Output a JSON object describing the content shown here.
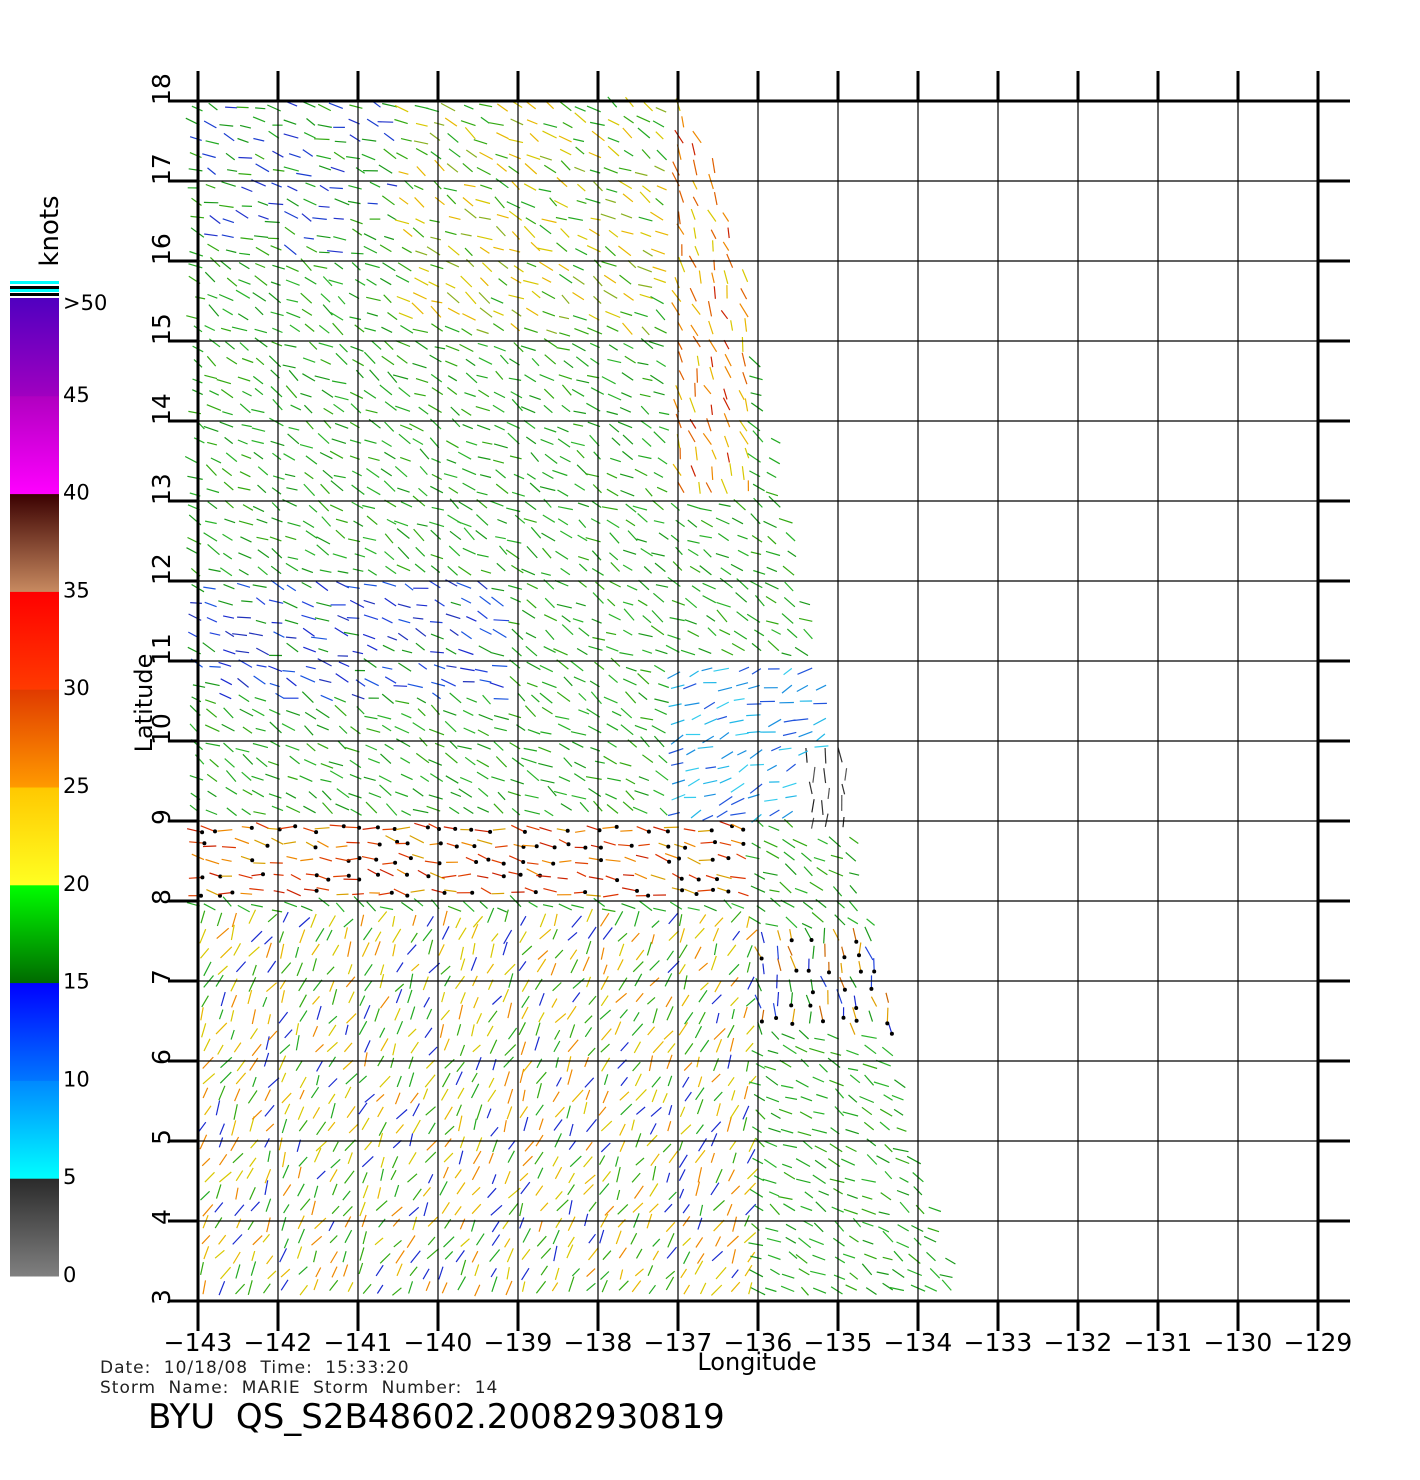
{
  "chart_data": {
    "type": "wind-vector-map",
    "xlabel": "Longitude",
    "ylabel": "Latitude",
    "xlim": [
      -143,
      -129
    ],
    "ylim": [
      3,
      18
    ],
    "x_ticks": [
      -143,
      -142,
      -141,
      -140,
      -139,
      -138,
      -137,
      -136,
      -135,
      -134,
      -133,
      -132,
      -131,
      -130,
      -129
    ],
    "y_ticks": [
      3,
      4,
      5,
      6,
      7,
      8,
      9,
      10,
      11,
      12,
      13,
      14,
      15,
      16,
      17,
      18
    ],
    "grid": true,
    "swath_edge": [
      [
        -136.95,
        18
      ],
      [
        -136.5,
        17
      ],
      [
        -136.2,
        16
      ],
      [
        -136.0,
        15
      ],
      [
        -135.8,
        14
      ],
      [
        -135.6,
        13
      ],
      [
        -135.4,
        12
      ],
      [
        -135.2,
        11
      ],
      [
        -135.0,
        10
      ],
      [
        -134.8,
        9
      ],
      [
        -134.6,
        8
      ],
      [
        -134.4,
        7
      ],
      [
        -134.2,
        6
      ],
      [
        -134.0,
        5
      ],
      [
        -133.7,
        4
      ],
      [
        -133.4,
        3
      ]
    ],
    "colorbar": {
      "title": "knots",
      "labels": [
        ">50",
        "45",
        "40",
        "35",
        "30",
        "25",
        "20",
        "15",
        "10",
        "5",
        "0"
      ],
      "bands": [
        {
          "min": 0,
          "max": 5,
          "colors": [
            "#808080",
            "#2a2a2a"
          ]
        },
        {
          "min": 5,
          "max": 10,
          "colors": [
            "#00ffff",
            "#0088ff"
          ]
        },
        {
          "min": 10,
          "max": 15,
          "colors": [
            "#0077ff",
            "#0000ff"
          ]
        },
        {
          "min": 15,
          "max": 20,
          "colors": [
            "#006a00",
            "#00ff00"
          ]
        },
        {
          "min": 20,
          "max": 25,
          "colors": [
            "#ffff22",
            "#ffc800"
          ]
        },
        {
          "min": 25,
          "max": 30,
          "colors": [
            "#ff9a00",
            "#e03a00"
          ]
        },
        {
          "min": 30,
          "max": 35,
          "colors": [
            "#ff3a00",
            "#ff0000"
          ]
        },
        {
          "min": 35,
          "max": 40,
          "colors": [
            "#c88a60",
            "#3a0000"
          ]
        },
        {
          "min": 40,
          "max": 45,
          "colors": [
            "#ff00ff",
            "#b000c0"
          ]
        },
        {
          "min": 45,
          "max": 50,
          "colors": [
            "#a000c0",
            "#5000c0"
          ]
        }
      ]
    },
    "wind_regions": [
      {
        "lon": [
          -143,
          -140.5
        ],
        "lat": [
          16,
          18
        ],
        "color": "green-blue",
        "direction_deg": 160
      },
      {
        "lon": [
          -140.5,
          -137
        ],
        "lat": [
          15,
          18
        ],
        "color": "green-yellow",
        "direction_deg": 150
      },
      {
        "lon": [
          -137,
          -136
        ],
        "lat": [
          13,
          18
        ],
        "color": "yellow-red",
        "direction_deg": 110
      },
      {
        "lon": [
          -143,
          -137
        ],
        "lat": [
          12,
          15
        ],
        "color": "green",
        "direction_deg": 150
      },
      {
        "lon": [
          -143,
          -139
        ],
        "lat": [
          10.5,
          12
        ],
        "color": "blue",
        "direction_deg": 160
      },
      {
        "lon": [
          -137,
          -135
        ],
        "lat": [
          9,
          11
        ],
        "color": "cyan",
        "direction_deg": 200
      },
      {
        "lon": [
          -135.5,
          -134.8
        ],
        "lat": [
          8.8,
          9.8
        ],
        "color": "gray",
        "direction_deg": 90
      },
      {
        "lon": [
          -143,
          -136
        ],
        "lat": [
          8,
          9
        ],
        "color": "red-orange",
        "direction_deg": 170,
        "rain_flagged": true
      },
      {
        "lon": [
          -137,
          -134.2
        ],
        "lat": [
          6.3,
          7.6
        ],
        "color": "blue-orange",
        "direction_deg": 100,
        "rain_flagged": true
      },
      {
        "lon": [
          -143,
          -136
        ],
        "lat": [
          3,
          7.8
        ],
        "color": "yellow-green",
        "direction_deg": 60
      }
    ]
  },
  "info": {
    "date_line": "Date: 10/18/08   Time: 15:33:20",
    "storm_line": "Storm Name: MARIE   Storm Number: 14",
    "file_label": "BYU QS_S2B48602.20082930819"
  }
}
